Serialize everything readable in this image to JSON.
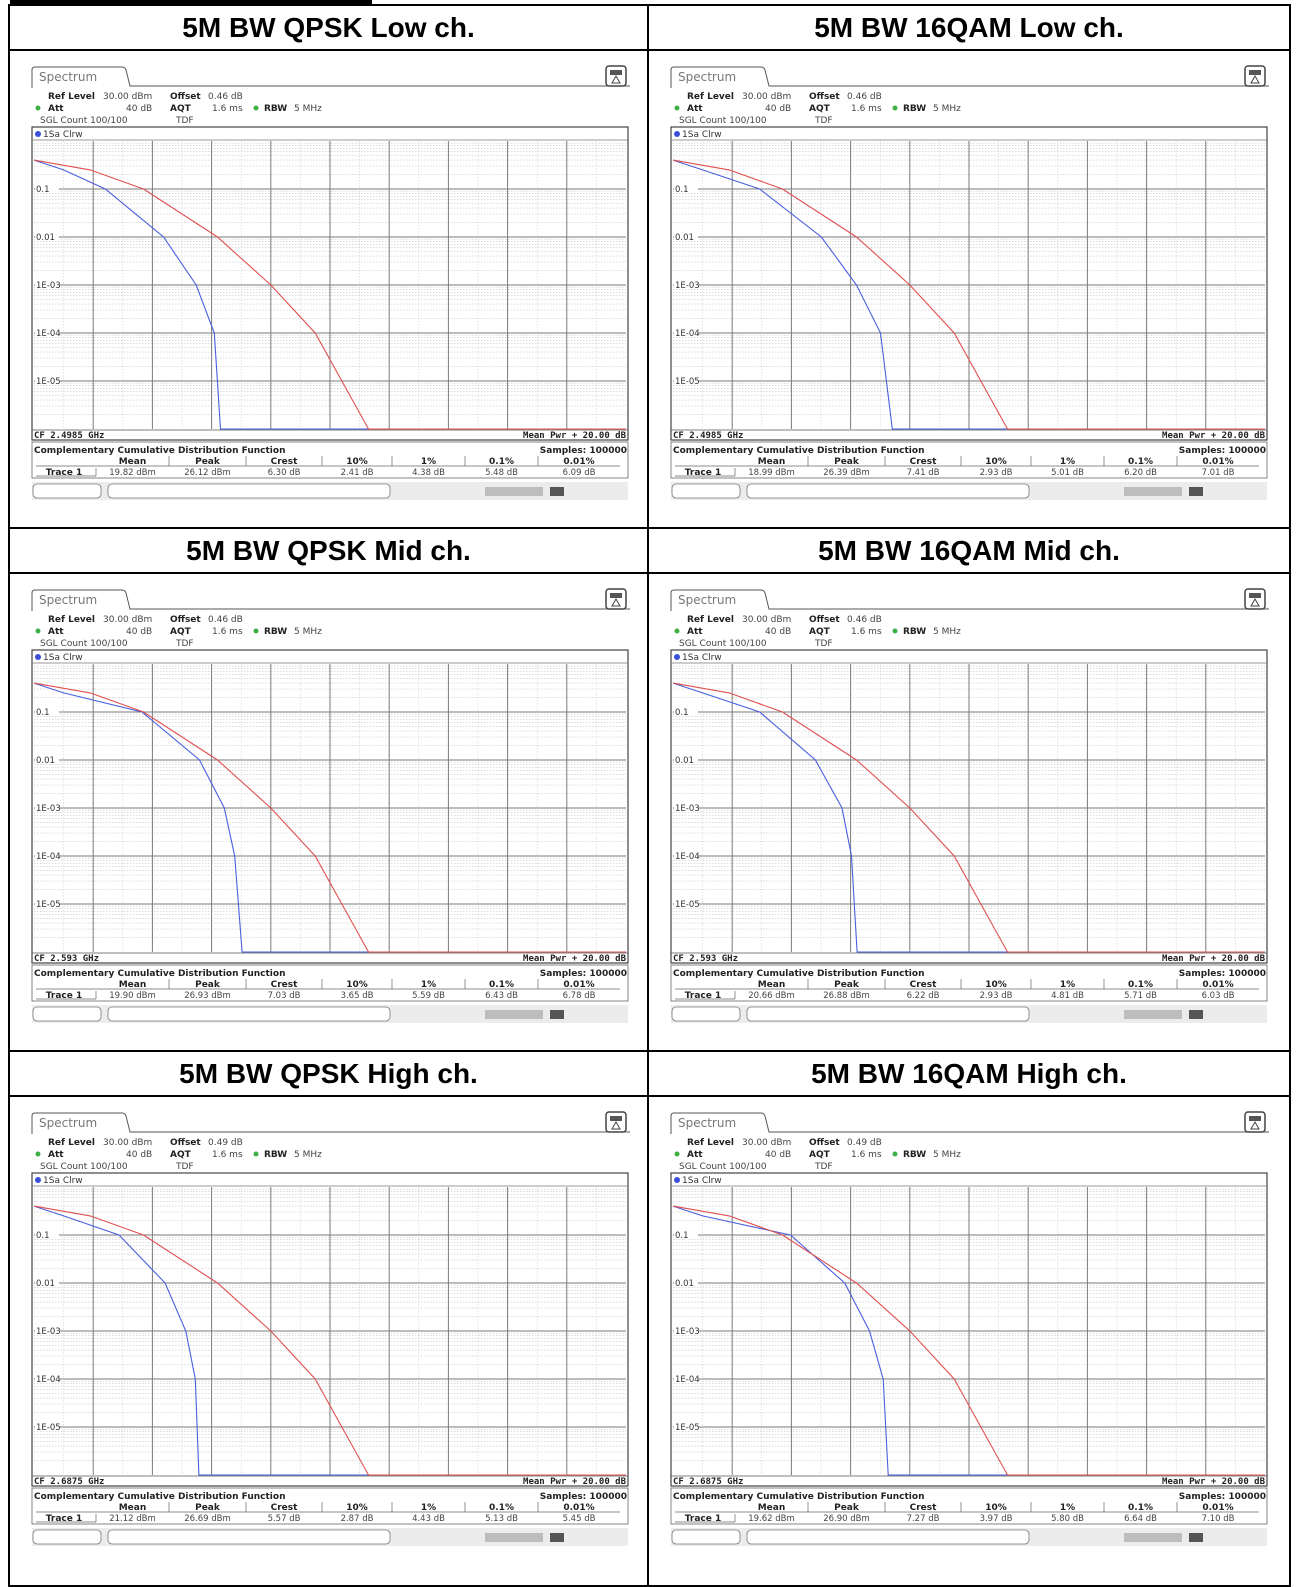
{
  "colors": {
    "blue_trace": "#4a5fe0",
    "red_trace": "#e0504f",
    "grid": "#808080",
    "panel_bg": "#ffffff"
  },
  "icons": {
    "settings": "display-settings-icon"
  },
  "chart_data": [
    {
      "type": "line",
      "title": "5M BW QPSK Low ch.",
      "tab": "Spectrum",
      "settings": {
        "ref_level_label": "Ref Level",
        "ref_level": "30.00 dBm",
        "offset_label": "Offset",
        "offset": "0.46 dB",
        "att_label": "Att",
        "att": "40 dB",
        "aqt_label": "AQT",
        "aqt": "1.6 ms",
        "rbw_label": "RBW",
        "rbw": "5 MHz",
        "sgl_count": "SGL Count 100/100",
        "tdf": "TDF"
      },
      "trace_label": "1Sa Clrw",
      "y_ticks": [
        "0.1",
        "0.01",
        "1E-03",
        "1E-04",
        "1E-05"
      ],
      "y_scale": "log",
      "ylim": [
        1e-06,
        1
      ],
      "xlim": [
        0,
        20
      ],
      "grid": true,
      "cf": "CF 2.4985 GHz",
      "span": "Mean Pwr + 20.00 dB",
      "table_title": "Complementary Cumulative Distribution Function",
      "samples": "Samples: 100000",
      "table_headers": [
        "Mean",
        "Peak",
        "Crest",
        "10%",
        "1%",
        "0.1%",
        "0.01%"
      ],
      "trace_row_label": "Trace 1",
      "table_values": [
        "19.82 dBm",
        "26.12 dBm",
        "6.30 dB",
        "2.41 dB",
        "4.38 dB",
        "5.48 dB",
        "6.09 dB"
      ],
      "series": [
        {
          "color": "#4a5fe0",
          "x": [
            0,
            1.0,
            2.41,
            4.38,
            5.48,
            6.09,
            6.3
          ],
          "y": [
            0.4,
            0.25,
            0.1,
            0.01,
            0.001,
            0.0001,
            1e-06
          ]
        },
        {
          "color": "#e0504f",
          "x": [
            0,
            1.9,
            3.7,
            6.2,
            8.0,
            9.5,
            11.3
          ],
          "y": [
            0.4,
            0.25,
            0.1,
            0.01,
            0.001,
            0.0001,
            1e-06
          ]
        }
      ]
    },
    {
      "type": "line",
      "title": "5M BW 16QAM Low ch.",
      "tab": "Spectrum",
      "settings": {
        "ref_level_label": "Ref Level",
        "ref_level": "30.00 dBm",
        "offset_label": "Offset",
        "offset": "0.46 dB",
        "att_label": "Att",
        "att": "40 dB",
        "aqt_label": "AQT",
        "aqt": "1.6 ms",
        "rbw_label": "RBW",
        "rbw": "5 MHz",
        "sgl_count": "SGL Count 100/100",
        "tdf": "TDF"
      },
      "trace_label": "1Sa Clrw",
      "y_ticks": [
        "0.1",
        "0.01",
        "1E-03",
        "1E-04",
        "1E-05"
      ],
      "y_scale": "log",
      "ylim": [
        1e-06,
        1
      ],
      "xlim": [
        0,
        20
      ],
      "grid": true,
      "cf": "CF 2.4985 GHz",
      "span": "Mean Pwr + 20.00 dB",
      "table_title": "Complementary Cumulative Distribution Function",
      "samples": "Samples: 100000",
      "table_headers": [
        "Mean",
        "Peak",
        "Crest",
        "10%",
        "1%",
        "0.1%",
        "0.01%"
      ],
      "trace_row_label": "Trace 1",
      "table_values": [
        "18.99 dBm",
        "26.39 dBm",
        "7.41 dB",
        "2.93 dB",
        "5.01 dB",
        "6.20 dB",
        "7.01 dB"
      ],
      "series": [
        {
          "color": "#4a5fe0",
          "x": [
            0,
            1.0,
            2.93,
            5.01,
            6.2,
            7.01,
            7.41
          ],
          "y": [
            0.4,
            0.25,
            0.1,
            0.01,
            0.001,
            0.0001,
            1e-06
          ]
        },
        {
          "color": "#e0504f",
          "x": [
            0,
            1.9,
            3.7,
            6.2,
            8.0,
            9.5,
            11.3
          ],
          "y": [
            0.4,
            0.25,
            0.1,
            0.01,
            0.001,
            0.0001,
            1e-06
          ]
        }
      ]
    },
    {
      "type": "line",
      "title": "5M BW QPSK Mid ch.",
      "tab": "Spectrum",
      "settings": {
        "ref_level_label": "Ref Level",
        "ref_level": "30.00 dBm",
        "offset_label": "Offset",
        "offset": "0.46 dB",
        "att_label": "Att",
        "att": "40 dB",
        "aqt_label": "AQT",
        "aqt": "1.6 ms",
        "rbw_label": "RBW",
        "rbw": "5 MHz",
        "sgl_count": "SGL Count 100/100",
        "tdf": "TDF"
      },
      "trace_label": "1Sa Clrw",
      "y_ticks": [
        "0.1",
        "0.01",
        "1E-03",
        "1E-04",
        "1E-05"
      ],
      "y_scale": "log",
      "ylim": [
        1e-06,
        1
      ],
      "xlim": [
        0,
        20
      ],
      "grid": true,
      "cf": "CF 2.593 GHz",
      "span": "Mean Pwr + 20.00 dB",
      "table_title": "Complementary Cumulative Distribution Function",
      "samples": "Samples: 100000",
      "table_headers": [
        "Mean",
        "Peak",
        "Crest",
        "10%",
        "1%",
        "0.1%",
        "0.01%"
      ],
      "trace_row_label": "Trace 1",
      "table_values": [
        "19.90 dBm",
        "26.93 dBm",
        "7.03 dB",
        "3.65 dB",
        "5.59 dB",
        "6.43 dB",
        "6.78 dB"
      ],
      "series": [
        {
          "color": "#4a5fe0",
          "x": [
            0,
            1.0,
            3.65,
            5.59,
            6.43,
            6.78,
            7.03
          ],
          "y": [
            0.4,
            0.25,
            0.1,
            0.01,
            0.001,
            0.0001,
            1e-06
          ]
        },
        {
          "color": "#e0504f",
          "x": [
            0,
            1.9,
            3.7,
            6.2,
            8.0,
            9.5,
            11.3
          ],
          "y": [
            0.4,
            0.25,
            0.1,
            0.01,
            0.001,
            0.0001,
            1e-06
          ]
        }
      ]
    },
    {
      "type": "line",
      "title": "5M BW 16QAM Mid ch.",
      "tab": "Spectrum",
      "settings": {
        "ref_level_label": "Ref Level",
        "ref_level": "30.00 dBm",
        "offset_label": "Offset",
        "offset": "0.46 dB",
        "att_label": "Att",
        "att": "40 dB",
        "aqt_label": "AQT",
        "aqt": "1.6 ms",
        "rbw_label": "RBW",
        "rbw": "5 MHz",
        "sgl_count": "SGL Count 100/100",
        "tdf": "TDF"
      },
      "trace_label": "1Sa Clrw",
      "y_ticks": [
        "0.1",
        "0.01",
        "1E-03",
        "1E-04",
        "1E-05"
      ],
      "y_scale": "log",
      "ylim": [
        1e-06,
        1
      ],
      "xlim": [
        0,
        20
      ],
      "grid": true,
      "cf": "CF 2.593 GHz",
      "span": "Mean Pwr + 20.00 dB",
      "table_title": "Complementary Cumulative Distribution Function",
      "samples": "Samples: 100000",
      "table_headers": [
        "Mean",
        "Peak",
        "Crest",
        "10%",
        "1%",
        "0.1%",
        "0.01%"
      ],
      "trace_row_label": "Trace 1",
      "table_values": [
        "20.66 dBm",
        "26.88 dBm",
        "6.22 dB",
        "2.93 dB",
        "4.81 dB",
        "5.71 dB",
        "6.03 dB"
      ],
      "series": [
        {
          "color": "#4a5fe0",
          "x": [
            0,
            1.0,
            2.93,
            4.81,
            5.71,
            6.03,
            6.22
          ],
          "y": [
            0.4,
            0.25,
            0.1,
            0.01,
            0.001,
            0.0001,
            1e-06
          ]
        },
        {
          "color": "#e0504f",
          "x": [
            0,
            1.9,
            3.7,
            6.2,
            8.0,
            9.5,
            11.3
          ],
          "y": [
            0.4,
            0.25,
            0.1,
            0.01,
            0.001,
            0.0001,
            1e-06
          ]
        }
      ]
    },
    {
      "type": "line",
      "title": "5M BW QPSK High ch.",
      "tab": "Spectrum",
      "settings": {
        "ref_level_label": "Ref Level",
        "ref_level": "30.00 dBm",
        "offset_label": "Offset",
        "offset": "0.49 dB",
        "att_label": "Att",
        "att": "40 dB",
        "aqt_label": "AQT",
        "aqt": "1.6 ms",
        "rbw_label": "RBW",
        "rbw": "5 MHz",
        "sgl_count": "SGL Count 100/100",
        "tdf": "TDF"
      },
      "trace_label": "1Sa Clrw",
      "y_ticks": [
        "0.1",
        "0.01",
        "1E-03",
        "1E-04",
        "1E-05"
      ],
      "y_scale": "log",
      "ylim": [
        1e-06,
        1
      ],
      "xlim": [
        0,
        20
      ],
      "grid": true,
      "cf": "CF 2.6875 GHz",
      "span": "Mean Pwr + 20.00 dB",
      "table_title": "Complementary Cumulative Distribution Function",
      "samples": "Samples: 100000",
      "table_headers": [
        "Mean",
        "Peak",
        "Crest",
        "10%",
        "1%",
        "0.1%",
        "0.01%"
      ],
      "trace_row_label": "Trace 1",
      "table_values": [
        "21.12 dBm",
        "26.69 dBm",
        "5.57 dB",
        "2.87 dB",
        "4.43 dB",
        "5.13 dB",
        "5.45 dB"
      ],
      "series": [
        {
          "color": "#4a5fe0",
          "x": [
            0,
            1.0,
            2.87,
            4.43,
            5.13,
            5.45,
            5.57
          ],
          "y": [
            0.4,
            0.25,
            0.1,
            0.01,
            0.001,
            0.0001,
            1e-06
          ]
        },
        {
          "color": "#e0504f",
          "x": [
            0,
            1.9,
            3.7,
            6.2,
            8.0,
            9.5,
            11.3
          ],
          "y": [
            0.4,
            0.25,
            0.1,
            0.01,
            0.001,
            0.0001,
            1e-06
          ]
        }
      ]
    },
    {
      "type": "line",
      "title": "5M BW 16QAM High ch.",
      "tab": "Spectrum",
      "settings": {
        "ref_level_label": "Ref Level",
        "ref_level": "30.00 dBm",
        "offset_label": "Offset",
        "offset": "0.49 dB",
        "att_label": "Att",
        "att": "40 dB",
        "aqt_label": "AQT",
        "aqt": "1.6 ms",
        "rbw_label": "RBW",
        "rbw": "5 MHz",
        "sgl_count": "SGL Count 100/100",
        "tdf": "TDF"
      },
      "trace_label": "1Sa Clrw",
      "y_ticks": [
        "0.1",
        "0.01",
        "1E-03",
        "1E-04",
        "1E-05"
      ],
      "y_scale": "log",
      "ylim": [
        1e-06,
        1
      ],
      "xlim": [
        0,
        20
      ],
      "grid": true,
      "cf": "CF 2.6875 GHz",
      "span": "Mean Pwr + 20.00 dB",
      "table_title": "Complementary Cumulative Distribution Function",
      "samples": "Samples: 100000",
      "table_headers": [
        "Mean",
        "Peak",
        "Crest",
        "10%",
        "1%",
        "0.1%",
        "0.01%"
      ],
      "trace_row_label": "Trace 1",
      "table_values": [
        "19.62 dBm",
        "26.90 dBm",
        "7.27 dB",
        "3.97 dB",
        "5.80 dB",
        "6.64 dB",
        "7.10 dB"
      ],
      "series": [
        {
          "color": "#4a5fe0",
          "x": [
            0,
            1.0,
            3.97,
            5.8,
            6.64,
            7.1,
            7.27
          ],
          "y": [
            0.4,
            0.25,
            0.1,
            0.01,
            0.001,
            0.0001,
            1e-06
          ]
        },
        {
          "color": "#e0504f",
          "x": [
            0,
            1.9,
            3.7,
            6.2,
            8.0,
            9.5,
            11.3
          ],
          "y": [
            0.4,
            0.25,
            0.1,
            0.01,
            0.001,
            0.0001,
            1e-06
          ]
        }
      ]
    }
  ]
}
